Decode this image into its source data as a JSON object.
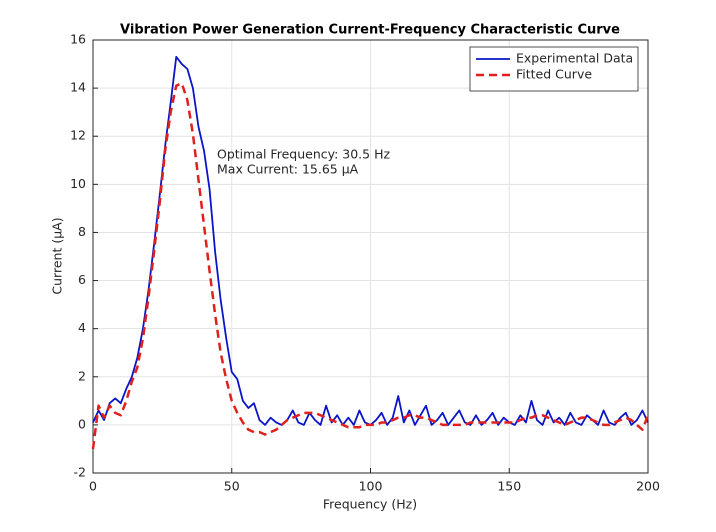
{
  "chart_data": {
    "type": "line",
    "title": "Vibration Power Generation Current-Frequency Characteristic Curve",
    "xlabel": "Frequency (Hz)",
    "ylabel": "Current (μA)",
    "x": [
      0,
      2,
      4,
      6,
      8,
      10,
      12,
      14,
      16,
      18,
      20,
      22,
      24,
      26,
      28,
      30,
      32,
      34,
      36,
      38,
      40,
      42,
      44,
      46,
      48,
      50,
      52,
      54,
      56,
      58,
      60,
      62,
      64,
      66,
      68,
      70,
      72,
      74,
      76,
      78,
      80,
      82,
      84,
      86,
      88,
      90,
      92,
      94,
      96,
      98,
      100,
      102,
      104,
      106,
      108,
      110,
      112,
      114,
      116,
      118,
      120,
      122,
      124,
      126,
      128,
      130,
      132,
      134,
      136,
      138,
      140,
      142,
      144,
      146,
      148,
      150,
      152,
      154,
      156,
      158,
      160,
      162,
      164,
      166,
      168,
      170,
      172,
      174,
      176,
      178,
      180,
      182,
      184,
      186,
      188,
      190,
      192,
      194,
      196,
      198,
      200
    ],
    "series": [
      {
        "name": "Experimental Data",
        "color": "#0a14c8",
        "dash": false,
        "values": [
          0.1,
          0.6,
          0.2,
          0.9,
          1.1,
          0.9,
          1.5,
          2.0,
          2.8,
          4.0,
          5.6,
          7.5,
          9.5,
          11.6,
          13.4,
          15.3,
          15.0,
          14.8,
          14.0,
          12.4,
          11.4,
          9.8,
          7.2,
          5.2,
          3.6,
          2.2,
          1.9,
          1.0,
          0.7,
          0.9,
          0.2,
          0.0,
          0.3,
          0.1,
          0.0,
          0.2,
          0.6,
          0.1,
          0.0,
          0.5,
          0.2,
          0.0,
          0.8,
          0.1,
          0.4,
          0.0,
          0.3,
          0.0,
          0.6,
          0.1,
          0.0,
          0.2,
          0.5,
          0.0,
          0.3,
          1.2,
          0.1,
          0.6,
          0.0,
          0.4,
          0.8,
          0.0,
          0.2,
          0.5,
          0.0,
          0.3,
          0.6,
          0.1,
          0.0,
          0.4,
          0.0,
          0.2,
          0.5,
          0.0,
          0.3,
          0.1,
          0.0,
          0.4,
          0.1,
          1.0,
          0.2,
          0.0,
          0.6,
          0.1,
          0.3,
          0.0,
          0.5,
          0.1,
          0.0,
          0.4,
          0.2,
          0.0,
          0.6,
          0.1,
          0.0,
          0.3,
          0.5,
          0.0,
          0.2,
          0.6,
          0.1
        ]
      },
      {
        "name": "Fitted Curve",
        "color": "#e0201c",
        "dash": true,
        "values": [
          -1.0,
          0.8,
          0.3,
          0.8,
          0.5,
          0.4,
          1.0,
          1.8,
          2.4,
          3.6,
          5.3,
          7.2,
          9.2,
          11.4,
          13.0,
          14.1,
          14.2,
          13.5,
          12.1,
          10.2,
          8.3,
          6.4,
          4.6,
          3.0,
          1.9,
          1.0,
          0.5,
          0.1,
          -0.2,
          -0.3,
          -0.3,
          -0.4,
          -0.3,
          -0.2,
          0.0,
          0.2,
          0.3,
          0.4,
          0.5,
          0.5,
          0.5,
          0.4,
          0.3,
          0.2,
          0.1,
          0.0,
          -0.1,
          -0.1,
          -0.1,
          0.0,
          0.0,
          0.0,
          0.1,
          0.1,
          0.2,
          0.3,
          0.3,
          0.4,
          0.4,
          0.3,
          0.3,
          0.2,
          0.1,
          0.0,
          0.0,
          0.0,
          0.0,
          0.0,
          0.1,
          0.1,
          0.1,
          0.1,
          0.1,
          0.1,
          0.1,
          0.1,
          0.1,
          0.2,
          0.3,
          0.3,
          0.4,
          0.4,
          0.3,
          0.2,
          0.1,
          0.0,
          0.1,
          0.2,
          0.3,
          0.3,
          0.2,
          0.1,
          0.0,
          0.0,
          0.1,
          0.2,
          0.3,
          0.2,
          0.0,
          -0.2,
          0.4
        ]
      }
    ],
    "annotations": [
      "Optimal Frequency: 30.5 Hz",
      "Max Current: 15.65 μA"
    ],
    "xlim": [
      0,
      200
    ],
    "xticks": [
      0,
      50,
      100,
      150,
      200
    ],
    "ylim": [
      -2,
      16
    ],
    "yticks": [
      -2,
      0,
      2,
      4,
      6,
      8,
      10,
      12,
      14,
      16
    ],
    "grid": true,
    "legend": "northeast"
  }
}
